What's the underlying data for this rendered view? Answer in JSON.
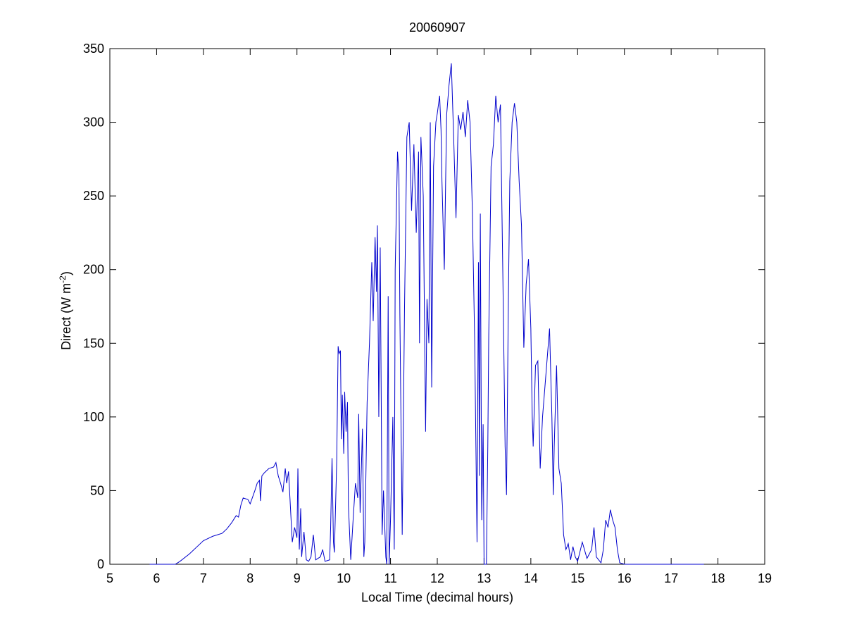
{
  "chart_data": {
    "type": "line",
    "title": "20060907",
    "xlabel": "Local Time (decimal hours)",
    "ylabel": [
      "Direct (W m",
      "-2",
      ")"
    ],
    "xlim": [
      5,
      19
    ],
    "ylim": [
      0,
      350
    ],
    "xticks": [
      5,
      6,
      7,
      8,
      9,
      10,
      11,
      12,
      13,
      14,
      15,
      16,
      17,
      18,
      19
    ],
    "yticks": [
      0,
      50,
      100,
      150,
      200,
      250,
      300,
      350
    ],
    "grid": false,
    "series": [
      {
        "color": "#0000cc",
        "x": [
          5.85,
          6.4,
          6.5,
          6.7,
          6.9,
          7.0,
          7.2,
          7.4,
          7.5,
          7.6,
          7.7,
          7.75,
          7.8,
          7.85,
          7.95,
          8.0,
          8.1,
          8.15,
          8.2,
          8.22,
          8.25,
          8.3,
          8.4,
          8.5,
          8.55,
          8.6,
          8.65,
          8.7,
          8.75,
          8.78,
          8.82,
          8.85,
          8.9,
          8.95,
          9.0,
          9.02,
          9.05,
          9.08,
          9.1,
          9.15,
          9.2,
          9.25,
          9.3,
          9.35,
          9.4,
          9.5,
          9.55,
          9.6,
          9.7,
          9.72,
          9.75,
          9.78,
          9.8,
          9.85,
          9.88,
          9.9,
          9.93,
          9.95,
          9.97,
          10.0,
          10.02,
          10.05,
          10.08,
          10.1,
          10.15,
          10.2,
          10.25,
          10.3,
          10.32,
          10.35,
          10.4,
          10.43,
          10.45,
          10.5,
          10.55,
          10.6,
          10.63,
          10.67,
          10.7,
          10.72,
          10.75,
          10.78,
          10.8,
          10.82,
          10.85,
          10.9,
          10.92,
          10.95,
          10.97,
          11.0,
          11.05,
          11.08,
          11.1,
          11.15,
          11.18,
          11.2,
          11.25,
          11.3,
          11.35,
          11.4,
          11.45,
          11.5,
          11.55,
          11.6,
          11.62,
          11.65,
          11.7,
          11.75,
          11.78,
          11.82,
          11.85,
          11.88,
          11.92,
          11.97,
          12.0,
          12.05,
          12.08,
          12.1,
          12.15,
          12.2,
          12.25,
          12.3,
          12.35,
          12.4,
          12.45,
          12.5,
          12.55,
          12.6,
          12.65,
          12.7,
          12.75,
          12.8,
          12.85,
          12.88,
          12.9,
          12.92,
          12.95,
          12.98,
          13.0,
          13.05,
          13.08,
          13.1,
          13.15,
          13.2,
          13.25,
          13.3,
          13.35,
          13.4,
          13.45,
          13.48,
          13.52,
          13.55,
          13.6,
          13.65,
          13.7,
          13.75,
          13.8,
          13.85,
          13.9,
          13.95,
          14.0,
          14.03,
          14.05,
          14.1,
          14.15,
          14.2,
          14.25,
          14.3,
          14.35,
          14.4,
          14.45,
          14.48,
          14.5,
          14.55,
          14.6,
          14.65,
          14.7,
          14.75,
          14.8,
          14.85,
          14.9,
          14.95,
          15.0,
          15.1,
          15.2,
          15.3,
          15.35,
          15.4,
          15.5,
          15.55,
          15.6,
          15.65,
          15.7,
          15.75,
          15.8,
          15.85,
          15.9,
          16.0,
          16.5,
          17.0,
          17.7
        ],
        "values": [
          0,
          0,
          2,
          7,
          13,
          16,
          19,
          21,
          24,
          28,
          33,
          32,
          40,
          45,
          44,
          41,
          50,
          55,
          57,
          43,
          60,
          62,
          65,
          66,
          69,
          60,
          55,
          49,
          65,
          55,
          63,
          45,
          15,
          25,
          18,
          65,
          10,
          38,
          5,
          22,
          3,
          2,
          5,
          20,
          3,
          5,
          10,
          2,
          3,
          25,
          72,
          15,
          8,
          70,
          148,
          143,
          145,
          85,
          115,
          75,
          117,
          90,
          110,
          40,
          3,
          30,
          55,
          45,
          102,
          35,
          92,
          5,
          15,
          110,
          150,
          205,
          165,
          222,
          185,
          230,
          100,
          215,
          120,
          20,
          50,
          5,
          0,
          182,
          0,
          30,
          100,
          10,
          200,
          280,
          265,
          170,
          20,
          175,
          290,
          300,
          240,
          285,
          225,
          280,
          150,
          290,
          250,
          90,
          180,
          150,
          300,
          120,
          270,
          300,
          306,
          318,
          295,
          260,
          200,
          305,
          325,
          340,
          290,
          235,
          305,
          295,
          307,
          290,
          315,
          300,
          240,
          150,
          15,
          205,
          60,
          238,
          30,
          95,
          0,
          0,
          80,
          155,
          270,
          285,
          318,
          300,
          312,
          200,
          80,
          47,
          180,
          260,
          300,
          313,
          300,
          260,
          230,
          147,
          190,
          207,
          160,
          100,
          80,
          135,
          138,
          65,
          100,
          120,
          140,
          160,
          100,
          47,
          80,
          135,
          65,
          55,
          20,
          10,
          14,
          3,
          12,
          5,
          2,
          15,
          4,
          10,
          25,
          5,
          1,
          10,
          30,
          25,
          37,
          30,
          25,
          10,
          1,
          0,
          0,
          0,
          0
        ]
      }
    ]
  }
}
